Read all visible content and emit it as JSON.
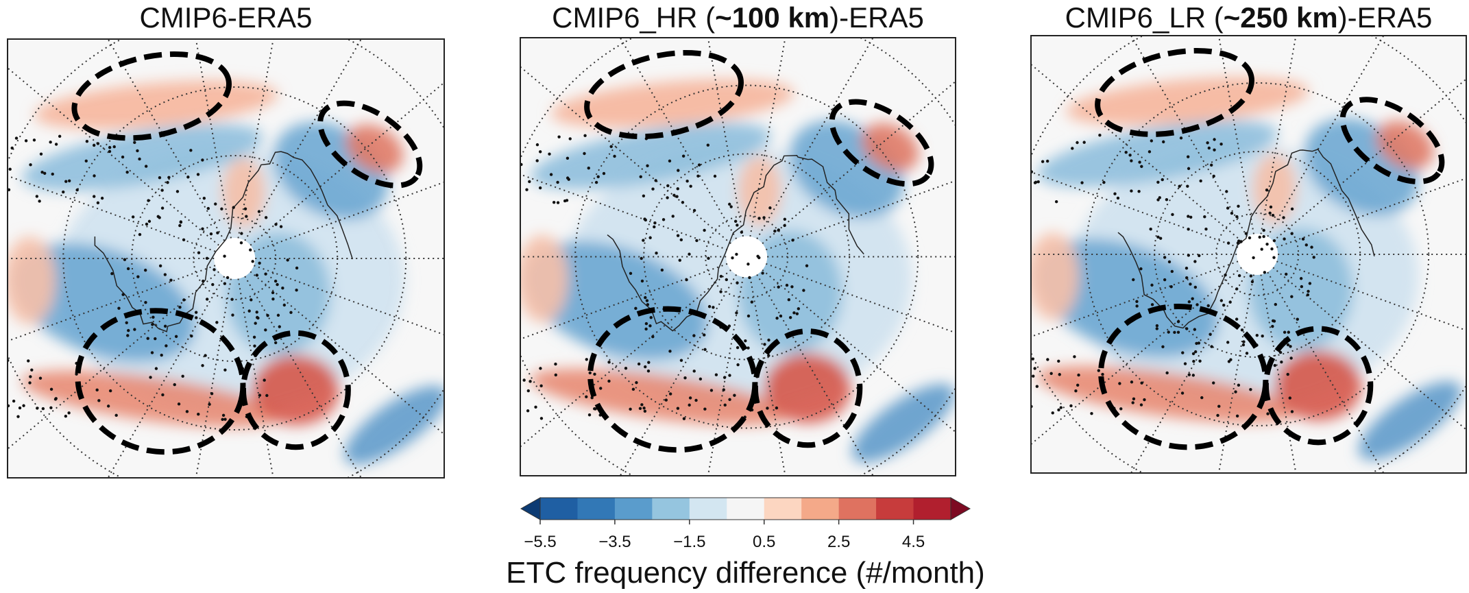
{
  "panels": [
    {
      "title_parts": [
        {
          "text": "CMIP6-ERA5",
          "bold": false
        }
      ]
    },
    {
      "title_parts": [
        {
          "text": "CMIP6_HR (",
          "bold": false
        },
        {
          "text": "~100 km",
          "bold": true
        },
        {
          "text": ")-ERA5",
          "bold": false
        }
      ]
    },
    {
      "title_parts": [
        {
          "text": "CMIP6_LR (",
          "bold": false
        },
        {
          "text": "~250 km",
          "bold": true
        },
        {
          "text": ")-ERA5",
          "bold": false
        }
      ]
    }
  ],
  "colorbar": {
    "clim": [
      -5.5,
      5.5
    ],
    "ticks": [
      {
        "value": -5.5,
        "label": "−5.5"
      },
      {
        "value": -3.5,
        "label": "−3.5"
      },
      {
        "value": -1.5,
        "label": "−1.5"
      },
      {
        "value": 0.5,
        "label": "0.5"
      },
      {
        "value": 2.5,
        "label": "2.5"
      },
      {
        "value": 4.5,
        "label": "4.5"
      }
    ],
    "colors": [
      "#1f5fa3",
      "#3278b6",
      "#5a9ccc",
      "#95c5df",
      "#d3e6f1",
      "#f5f5f5",
      "#fcd6c1",
      "#f4a989",
      "#df7260",
      "#c73c3c",
      "#b11f2e"
    ],
    "under_color": "#0d3b73",
    "over_color": "#7d0a22",
    "label": "ETC frequency difference (#/month)"
  }
}
